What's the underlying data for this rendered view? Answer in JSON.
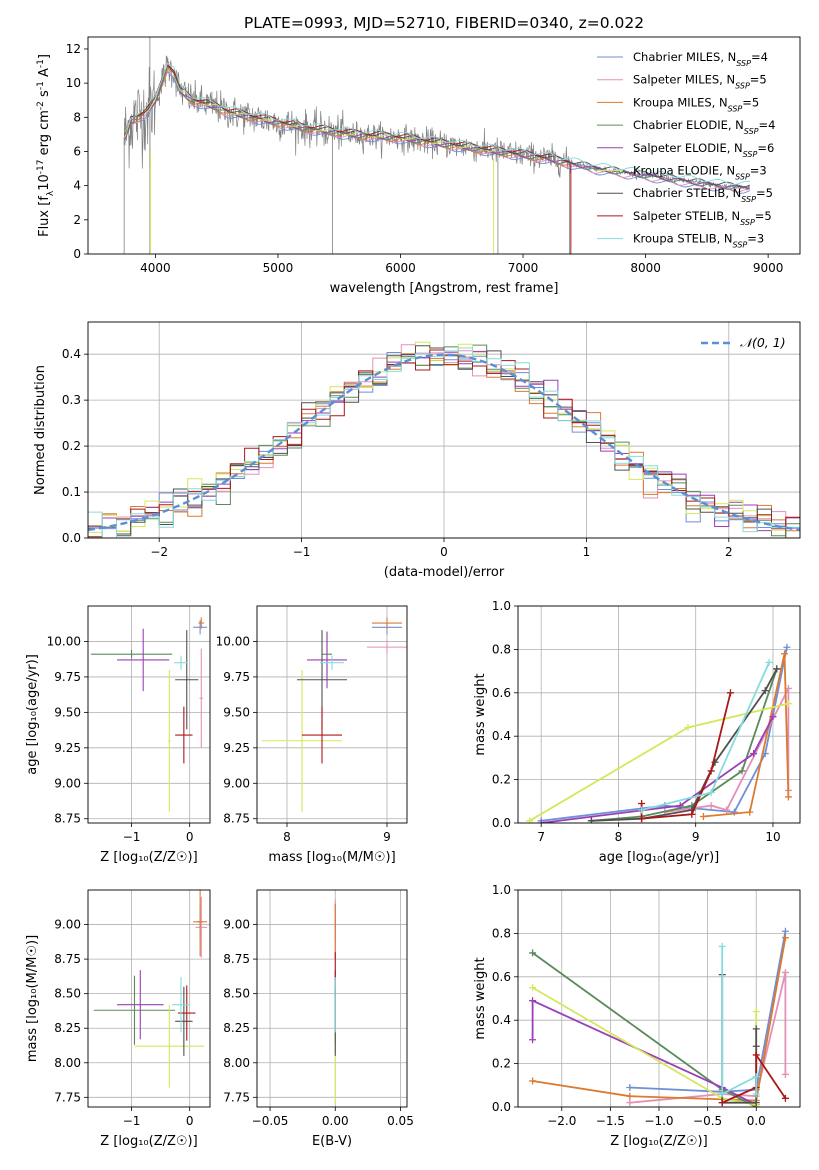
{
  "figure_title": "PLATE=0993, MJD=52710, FIBERID=0340, z=0.022",
  "colors": {
    "Chabrier MILES": "#6f8fd6",
    "Salpeter MILES": "#e58fb8",
    "Kroupa MILES": "#dc7a30",
    "Chabrier ELODIE": "#5a8a5a",
    "Salpeter ELODIE": "#9a3fb8",
    "Kroupa ELODIE": "#d4e85a",
    "Chabrier STELIB": "#505050",
    "Salpeter STELIB": "#aa1818",
    "Kroupa STELIB": "#86dcdc",
    "data": "#808080",
    "normal": "#5b8fd6"
  },
  "chart_data": [
    {
      "id": "spectrum",
      "type": "line",
      "title": "PLATE=0993, MJD=52710, FIBERID=0340, z=0.022",
      "xlabel": "wavelength [Angstrom, rest frame]",
      "ylabel_parts": [
        "Flux [f",
        "λ",
        "10",
        "-17",
        " erg cm",
        "-2",
        " s",
        "-1",
        " A",
        "-1",
        "]"
      ],
      "xlim": [
        3450,
        9260
      ],
      "ylim": [
        0,
        12.7
      ],
      "xticks": [
        4000,
        5000,
        6000,
        7000,
        8000,
        9000
      ],
      "yticks": [
        0,
        2,
        4,
        6,
        8,
        10,
        12
      ],
      "grid": false,
      "legend_placement": "top-right",
      "legend": [
        {
          "name": "Chabrier MILES",
          "n": "4"
        },
        {
          "name": "Salpeter MILES",
          "n": "5"
        },
        {
          "name": "Kroupa MILES",
          "n": "5"
        },
        {
          "name": "Chabrier ELODIE",
          "n": "4"
        },
        {
          "name": "Salpeter ELODIE",
          "n": "6"
        },
        {
          "name": "Kroupa ELODIE",
          "n": "3"
        },
        {
          "name": "Chabrier STELIB",
          "n": "5"
        },
        {
          "name": "Salpeter STELIB",
          "n": "5"
        },
        {
          "name": "Kroupa STELIB",
          "n": "3"
        }
      ],
      "model_continuum": {
        "x": [
          3750,
          3800,
          3850,
          3900,
          3950,
          4000,
          4050,
          4100,
          4150,
          4200,
          4300,
          4400,
          4500,
          4600,
          4800,
          5000,
          5200,
          5400,
          5600,
          5800,
          6000,
          6200,
          6400,
          6600,
          6800,
          7000,
          7200,
          7400,
          7600,
          7800,
          8000,
          8200,
          8400,
          8600,
          8800
        ],
        "y": [
          6.8,
          7.8,
          8.0,
          8.2,
          8.5,
          9.0,
          10.0,
          11.0,
          10.6,
          9.6,
          9.0,
          8.8,
          8.6,
          8.3,
          8.0,
          7.7,
          7.4,
          7.2,
          7.0,
          6.9,
          6.8,
          6.6,
          6.4,
          6.2,
          6.0,
          5.8,
          5.6,
          5.3,
          5.0,
          4.8,
          4.6,
          4.4,
          4.2,
          4.0,
          3.9
        ]
      },
      "data_spike_x": [
        3745,
        3955,
        5445,
        6795,
        7380
      ]
    },
    {
      "id": "residuals",
      "type": "histogram",
      "xlabel": "(data-model)/error",
      "ylabel": "Normed distribution",
      "xlim": [
        -2.5,
        2.5
      ],
      "ylim": [
        0,
        0.47
      ],
      "xticks": [
        -2,
        -1,
        0,
        1,
        2
      ],
      "yticks": [
        0.0,
        0.1,
        0.2,
        0.3,
        0.4
      ],
      "grid": true,
      "legend_placement": "top-right",
      "legend": [
        {
          "name": "𝒩(0, 1)"
        }
      ],
      "bin_width": 0.1
    },
    {
      "id": "age-vs-z",
      "type": "errorbar",
      "xlabel": "Z [log₁₀(Z/Z☉)]",
      "ylabel": "age  [log₁₀(age/yr)]",
      "xlim": [
        -1.75,
        0.35
      ],
      "ylim": [
        8.72,
        10.25
      ],
      "xticks": [
        -1,
        0
      ],
      "yticks": [
        8.75,
        9.0,
        9.25,
        9.5,
        9.75,
        10.0
      ],
      "grid": true,
      "points": [
        {
          "model": "Chabrier MILES",
          "x": 0.18,
          "xerr": 0.12,
          "y": 10.1,
          "yerr": 0.05
        },
        {
          "model": "Salpeter MILES",
          "x": 0.2,
          "xerr": 0.03,
          "y": 9.6,
          "yerr": 0.35
        },
        {
          "model": "Kroupa MILES",
          "x": 0.2,
          "xerr": 0.05,
          "y": 10.13,
          "yerr": 0.04
        },
        {
          "model": "Chabrier ELODIE",
          "x": -1.0,
          "xerr": 0.7,
          "y": 9.91,
          "yerr": 0.03
        },
        {
          "model": "Salpeter ELODIE",
          "x": -0.8,
          "xerr": 0.45,
          "y": 9.87,
          "yerr": 0.22
        },
        {
          "model": "Kroupa ELODIE",
          "x": -0.35,
          "xerr": 0.02,
          "y": 9.3,
          "yerr": 0.5
        },
        {
          "model": "Chabrier STELIB",
          "x": -0.05,
          "xerr": 0.2,
          "y": 9.73,
          "yerr": 0.35
        },
        {
          "model": "Salpeter STELIB",
          "x": -0.1,
          "xerr": 0.15,
          "y": 9.34,
          "yerr": 0.2
        },
        {
          "model": "Kroupa STELIB",
          "x": -0.15,
          "xerr": 0.12,
          "y": 9.85,
          "yerr": 0.05
        }
      ]
    },
    {
      "id": "age-vs-mass",
      "type": "errorbar",
      "xlabel": "mass [log₁₀(M/M☉)]",
      "ylabel": "",
      "xlim": [
        7.7,
        9.2
      ],
      "ylim": [
        8.72,
        10.25
      ],
      "xticks": [
        8,
        9
      ],
      "yticks": [
        8.75,
        9.0,
        9.25,
        9.5,
        9.75,
        10.0
      ],
      "grid": true,
      "points": [
        {
          "model": "Chabrier MILES",
          "x": 9.0,
          "xerr": 0.15,
          "y": 10.1,
          "yerr": 0.05
        },
        {
          "model": "Salpeter MILES",
          "x": 9.0,
          "xerr": 0.2,
          "y": 9.96,
          "yerr": 0.05
        },
        {
          "model": "Kroupa MILES",
          "x": 9.0,
          "xerr": 0.15,
          "y": 10.13,
          "yerr": 0.04
        },
        {
          "model": "Chabrier ELODIE",
          "x": 8.4,
          "xerr": 0.05,
          "y": 9.91,
          "yerr": 0.15
        },
        {
          "model": "Salpeter ELODIE",
          "x": 8.4,
          "xerr": 0.2,
          "y": 9.87,
          "yerr": 0.2
        },
        {
          "model": "Kroupa ELODIE",
          "x": 8.15,
          "xerr": 0.4,
          "y": 9.3,
          "yerr": 0.5
        },
        {
          "model": "Chabrier STELIB",
          "x": 8.35,
          "xerr": 0.25,
          "y": 9.73,
          "yerr": 0.35
        },
        {
          "model": "Salpeter STELIB",
          "x": 8.35,
          "xerr": 0.2,
          "y": 9.34,
          "yerr": 0.2
        },
        {
          "model": "Kroupa STELIB",
          "x": 8.45,
          "xerr": 0.12,
          "y": 9.85,
          "yerr": 0.05
        }
      ]
    },
    {
      "id": "weight-vs-age",
      "type": "line",
      "xlabel": "age  [log₁₀(age/yr)]",
      "ylabel": "mass weight",
      "xlim": [
        6.7,
        10.35
      ],
      "ylim": [
        0,
        1.0
      ],
      "xticks": [
        7,
        8,
        9,
        10
      ],
      "yticks": [
        0.0,
        0.2,
        0.4,
        0.6,
        0.8,
        1.0
      ],
      "grid": true,
      "series": [
        {
          "model": "Chabrier MILES",
          "x": [
            7.0,
            8.6,
            9.5,
            9.9,
            10.18
          ],
          "y": [
            0.01,
            0.08,
            0.05,
            0.32,
            0.81
          ]
        },
        {
          "model": "Salpeter MILES",
          "x": [
            8.6,
            9.2,
            9.4,
            10.2,
            10.2
          ],
          "y": [
            0.05,
            0.08,
            0.06,
            0.62,
            0.15
          ]
        },
        {
          "model": "Kroupa MILES",
          "x": [
            9.1,
            9.7,
            10.15,
            10.2
          ],
          "y": [
            0.03,
            0.05,
            0.78,
            0.12
          ]
        },
        {
          "model": "Chabrier ELODIE",
          "x": [
            7.65,
            8.3,
            8.95,
            9.6,
            10.05
          ],
          "y": [
            0.01,
            0.03,
            0.08,
            0.24,
            0.71
          ]
        },
        {
          "model": "Salpeter ELODIE",
          "x": [
            7.0,
            8.8,
            9.75,
            10.0
          ],
          "y": [
            0.0,
            0.08,
            0.32,
            0.49
          ]
        },
        {
          "model": "Kroupa ELODIE",
          "x": [
            6.85,
            8.9,
            10.2
          ],
          "y": [
            0.01,
            0.44,
            0.55
          ]
        },
        {
          "model": "Chabrier STELIB",
          "x": [
            7.65,
            8.3,
            8.95,
            9.25,
            9.9,
            10.05
          ],
          "y": [
            0.01,
            0.02,
            0.06,
            0.28,
            0.61,
            0.71
          ]
        },
        {
          "model": "Salpeter STELIB",
          "x": [
            8.3,
            8.3,
            8.95,
            9.2,
            9.45
          ],
          "y": [
            0.09,
            0.02,
            0.04,
            0.24,
            0.6
          ]
        },
        {
          "model": "Kroupa STELIB",
          "x": [
            8.3,
            9.2,
            9.95
          ],
          "y": [
            0.06,
            0.14,
            0.74
          ]
        }
      ]
    },
    {
      "id": "mass-vs-z",
      "type": "errorbar",
      "xlabel": "Z [log₁₀(Z/Z☉)]",
      "ylabel": "mass [log₁₀(M/M☉)]",
      "xlim": [
        -1.75,
        0.35
      ],
      "ylim": [
        7.68,
        9.25
      ],
      "xticks": [
        -1,
        0
      ],
      "yticks": [
        7.75,
        8.0,
        8.25,
        8.5,
        8.75,
        9.0
      ],
      "grid": true,
      "points": [
        {
          "model": "Chabrier MILES",
          "x": 0.18,
          "xerr": 0.05,
          "y": 9.02,
          "yerr": 0.12
        },
        {
          "model": "Salpeter MILES",
          "x": 0.2,
          "xerr": 0.1,
          "y": 8.98,
          "yerr": 0.22
        },
        {
          "model": "Kroupa MILES",
          "x": 0.18,
          "xerr": 0.12,
          "y": 9.02,
          "yerr": 0.25
        },
        {
          "model": "Chabrier ELODIE",
          "x": -0.95,
          "xerr": 0.7,
          "y": 8.38,
          "yerr": 0.25
        },
        {
          "model": "Salpeter ELODIE",
          "x": -0.85,
          "xerr": 0.4,
          "y": 8.42,
          "yerr": 0.25
        },
        {
          "model": "Kroupa ELODIE",
          "x": -0.35,
          "xerr": 0.6,
          "y": 8.12,
          "yerr": 0.3
        },
        {
          "model": "Chabrier STELIB",
          "x": -0.1,
          "xerr": 0.15,
          "y": 8.3,
          "yerr": 0.25
        },
        {
          "model": "Salpeter STELIB",
          "x": -0.05,
          "xerr": 0.15,
          "y": 8.36,
          "yerr": 0.2
        },
        {
          "model": "Kroupa STELIB",
          "x": -0.15,
          "xerr": 0.15,
          "y": 8.42,
          "yerr": 0.2
        }
      ]
    },
    {
      "id": "mass-vs-ebv",
      "type": "errorbar",
      "xlabel": "E(B-V)",
      "ylabel": "",
      "xlim": [
        -0.06,
        0.055
      ],
      "ylim": [
        7.68,
        9.25
      ],
      "xticks": [
        -0.05,
        0.0,
        0.05
      ],
      "xticklabels": [
        "−0.05",
        "0.00",
        "0.05"
      ],
      "yticks": [
        7.75,
        8.0,
        8.25,
        8.5,
        8.75,
        9.0
      ],
      "grid": true,
      "points": [
        {
          "model": "Chabrier MILES",
          "x": 0.0,
          "xerr": 0.0,
          "y": 9.02,
          "yerr": 0.12
        },
        {
          "model": "Salpeter MILES",
          "x": 0.0,
          "xerr": 0.0,
          "y": 8.98,
          "yerr": 0.2
        },
        {
          "model": "Kroupa MILES",
          "x": 0.0,
          "xerr": 0.0,
          "y": 8.95,
          "yerr": 0.2
        },
        {
          "model": "Chabrier ELODIE",
          "x": 0.0,
          "xerr": 0.0,
          "y": 8.38,
          "yerr": 0.25
        },
        {
          "model": "Salpeter ELODIE",
          "x": 0.0,
          "xerr": 0.0,
          "y": 8.42,
          "yerr": 0.25
        },
        {
          "model": "Kroupa ELODIE",
          "x": 0.0,
          "xerr": 0.0,
          "y": 8.1,
          "yerr": 0.4
        },
        {
          "model": "Chabrier STELIB",
          "x": 0.0,
          "xerr": 0.0,
          "y": 8.3,
          "yerr": 0.25
        },
        {
          "model": "Salpeter STELIB",
          "x": 0.0,
          "xerr": 0.0,
          "y": 8.7,
          "yerr": 0.1
        },
        {
          "model": "Kroupa STELIB",
          "x": 0.0,
          "xerr": 0.0,
          "y": 8.42,
          "yerr": 0.2
        }
      ]
    },
    {
      "id": "weight-vs-z",
      "type": "line",
      "xlabel": "Z [log₁₀(Z/Z☉)]",
      "ylabel": "mass weight",
      "xlim": [
        -2.45,
        0.45
      ],
      "ylim": [
        0,
        1.0
      ],
      "xticks": [
        -2.0,
        -1.5,
        -1.0,
        -0.5,
        0.0
      ],
      "xticklabels": [
        "−2.0",
        "−1.5",
        "−1.0",
        "−0.5",
        "0.0"
      ],
      "yticks": [
        0.0,
        0.2,
        0.4,
        0.6,
        0.8,
        1.0
      ],
      "grid": true,
      "series": [
        {
          "model": "Chabrier MILES",
          "x": [
            -1.3,
            -0.35,
            0.0,
            0.3
          ],
          "y": [
            0.09,
            0.07,
            0.08,
            0.81
          ]
        },
        {
          "model": "Salpeter MILES",
          "x": [
            -1.3,
            -0.35,
            0.0,
            0.3,
            0.3
          ],
          "y": [
            0.02,
            0.06,
            0.05,
            0.62,
            0.15
          ]
        },
        {
          "model": "Kroupa MILES",
          "x": [
            -2.3,
            -1.3,
            0.0,
            0.3
          ],
          "y": [
            0.12,
            0.05,
            0.03,
            0.78
          ]
        },
        {
          "model": "Chabrier ELODIE",
          "x": [
            -2.3,
            -0.35,
            0.0
          ],
          "y": [
            0.71,
            0.08,
            0.0
          ]
        },
        {
          "model": "Salpeter ELODIE",
          "x": [
            -2.3,
            -2.3,
            -0.35,
            0.0
          ],
          "y": [
            0.31,
            0.49,
            0.09,
            0.01
          ]
        },
        {
          "model": "Kroupa ELODIE",
          "x": [
            -2.3,
            -0.35,
            0.0,
            0.0
          ],
          "y": [
            0.55,
            0.04,
            0.01,
            0.44
          ]
        },
        {
          "model": "Chabrier STELIB",
          "x": [
            -0.35,
            -0.35,
            0.0,
            0.0,
            0.0
          ],
          "y": [
            0.61,
            0.02,
            0.02,
            0.28,
            0.36
          ]
        },
        {
          "model": "Salpeter STELIB",
          "x": [
            -0.35,
            0.0,
            0.0,
            0.3
          ],
          "y": [
            0.02,
            0.09,
            0.24,
            0.04
          ]
        },
        {
          "model": "Kroupa STELIB",
          "x": [
            -0.35,
            -0.35,
            0.0,
            0.0
          ],
          "y": [
            0.74,
            0.06,
            0.14,
            0.06
          ]
        }
      ]
    }
  ]
}
